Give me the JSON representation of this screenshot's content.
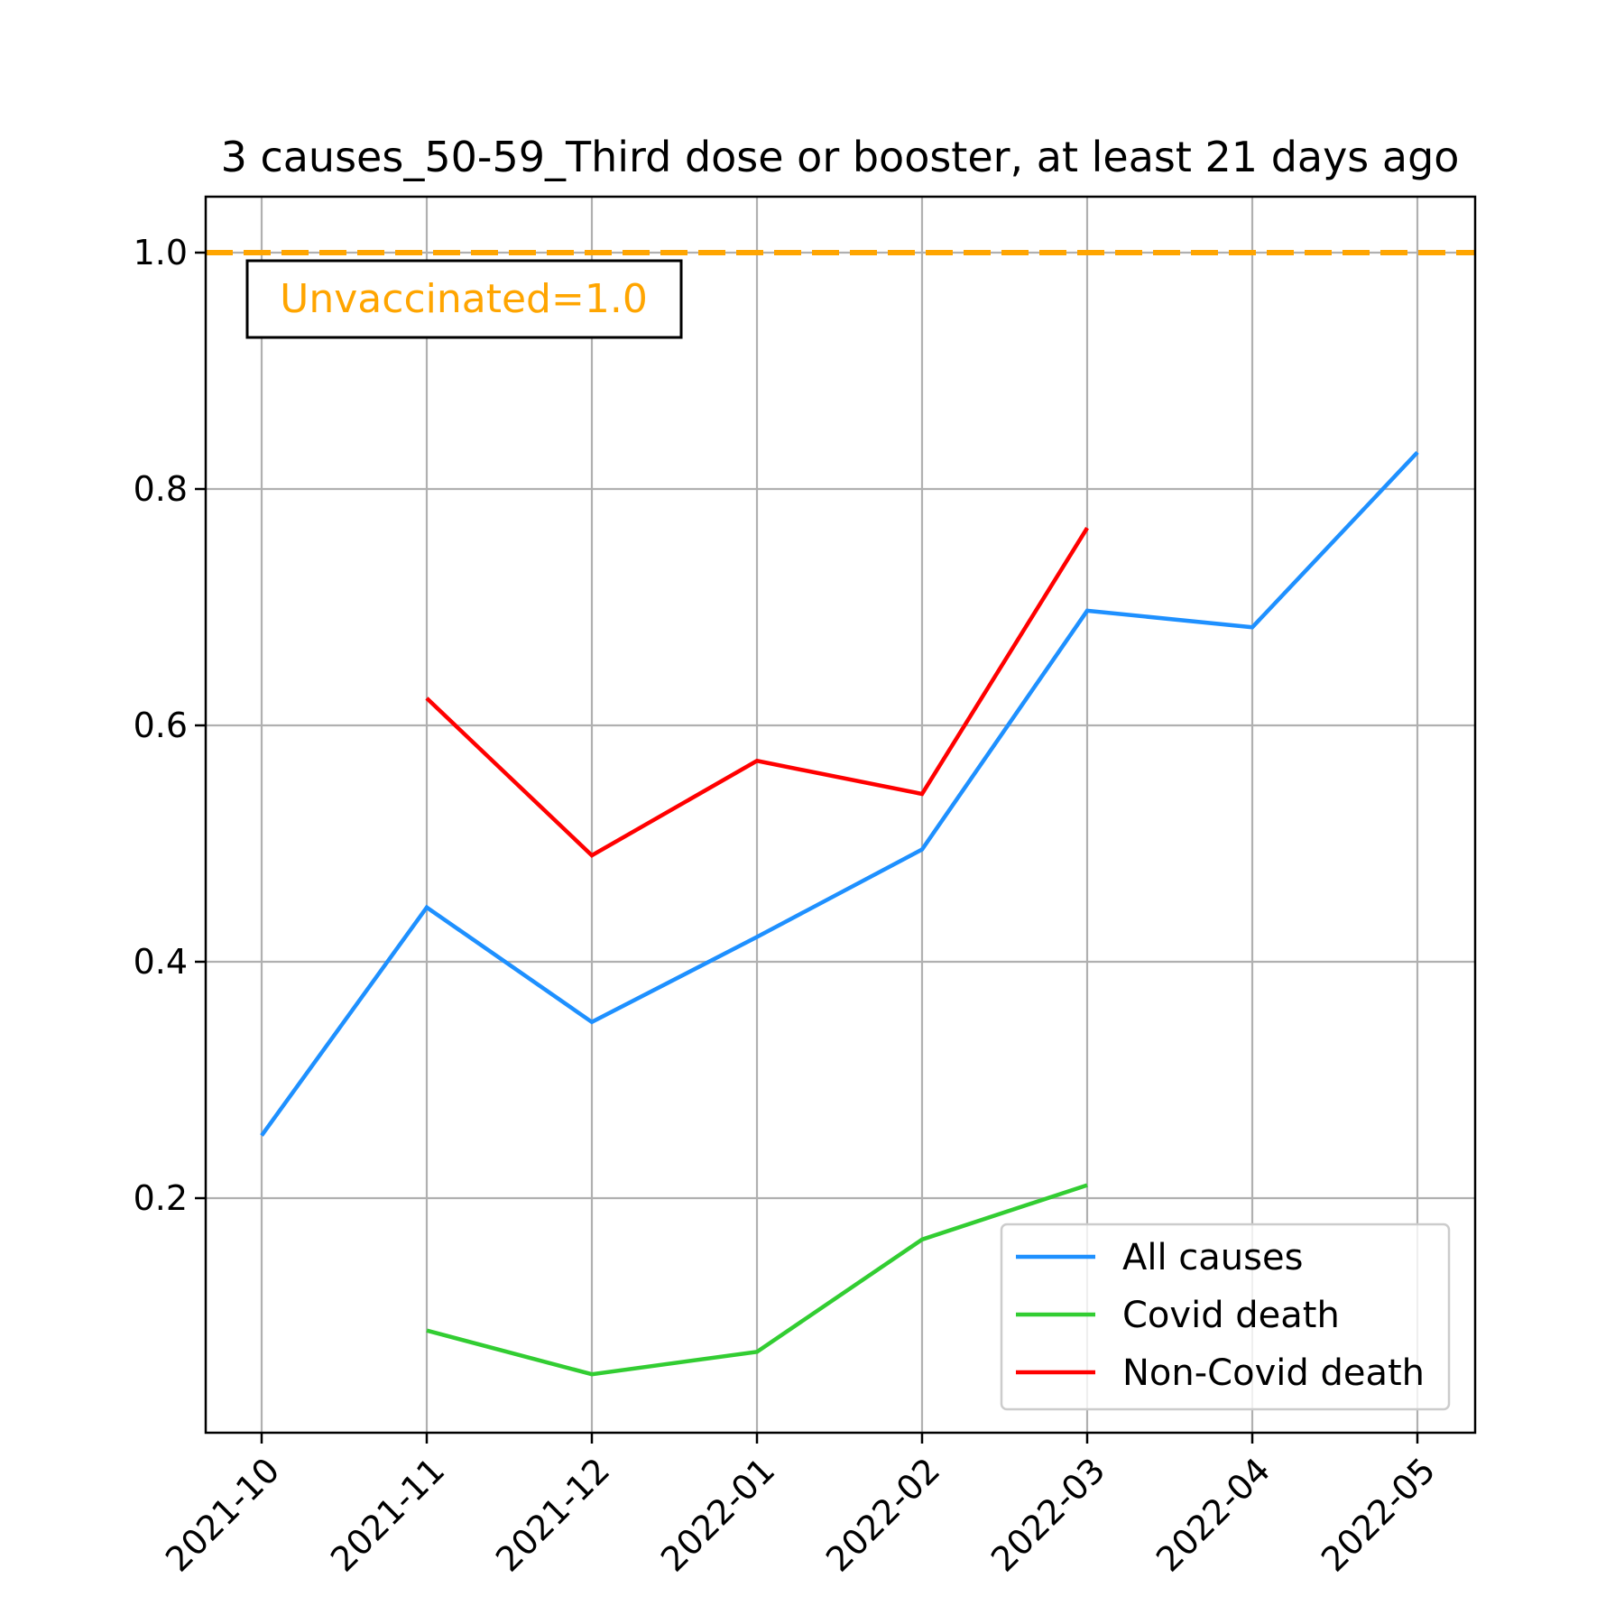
{
  "chart_data": {
    "type": "line",
    "title": "3 causes_50-59_Third dose or booster, at least 21 days ago",
    "xlabel": "",
    "ylabel": "",
    "x": [
      "2021-10",
      "2021-11",
      "2021-12",
      "2022-01",
      "2022-02",
      "2022-03",
      "2022-04",
      "2022-05"
    ],
    "y_ticks": [
      "0.2",
      "0.4",
      "0.6",
      "0.8",
      "1.0"
    ],
    "ylim": [
      0.0,
      1.047
    ],
    "grid": true,
    "legend_position": "lower-right",
    "series": [
      {
        "name": "All causes",
        "color": "#1e90ff",
        "values": [
          0.253,
          0.446,
          0.349,
          0.421,
          0.495,
          0.697,
          0.683,
          0.831
        ]
      },
      {
        "name": "Covid death",
        "color": "#32cd32",
        "values": [
          null,
          0.088,
          0.051,
          0.07,
          0.165,
          0.211,
          null,
          null
        ]
      },
      {
        "name": "Non-Covid death",
        "color": "#ff0000",
        "values": [
          null,
          0.623,
          0.49,
          0.57,
          0.542,
          0.767,
          null,
          null
        ]
      }
    ],
    "reference_line": {
      "value": 1.0,
      "color": "#ffa500",
      "label": "Unvaccinated=1.0"
    }
  }
}
